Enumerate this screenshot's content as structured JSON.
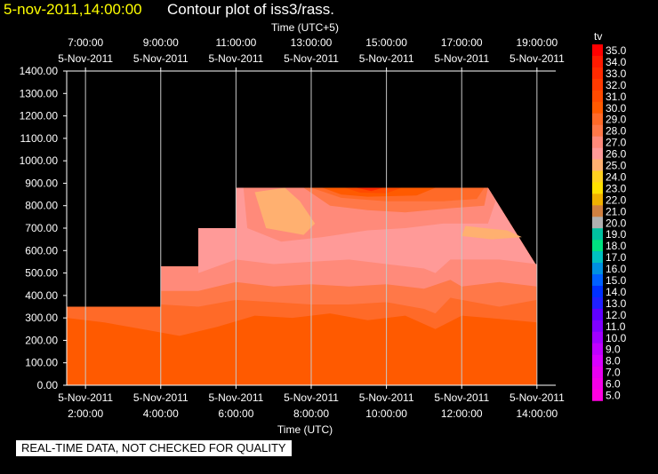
{
  "header": {
    "date_label": "5-nov-2011,14:00:00",
    "plot_title": "Contour plot of iss3/rass."
  },
  "footer": {
    "qc_note": "REAL-TIME DATA, NOT CHECKED FOR QUALITY"
  },
  "chart_data": {
    "type": "contour",
    "title": "Contour plot of iss3/rass.",
    "x_bottom_label": "Time (UTC)",
    "x_top_label": "Time (UTC+5)",
    "x_range_utc_hours": [
      1.5,
      14.5
    ],
    "y_range": [
      0,
      1400
    ],
    "y_ticks": [
      "0.00",
      "100.00",
      "200.00",
      "300.00",
      "400.00",
      "500.00",
      "600.00",
      "700.00",
      "800.00",
      "900.00",
      "1000.00",
      "1100.00",
      "1200.00",
      "1300.00",
      "1400.00"
    ],
    "bottom_ticks": [
      {
        "utc_hour": 2,
        "date": "5-Nov-2011",
        "time": "2:00:00"
      },
      {
        "utc_hour": 4,
        "date": "5-Nov-2011",
        "time": "4:00:00"
      },
      {
        "utc_hour": 6,
        "date": "5-Nov-2011",
        "time": "6:00:00"
      },
      {
        "utc_hour": 8,
        "date": "5-Nov-2011",
        "time": "8:00:00"
      },
      {
        "utc_hour": 10,
        "date": "5-Nov-2011",
        "time": "10:00:00"
      },
      {
        "utc_hour": 12,
        "date": "5-Nov-2011",
        "time": "12:00:00"
      },
      {
        "utc_hour": 14,
        "date": "5-Nov-2011",
        "time": "14:00:00"
      }
    ],
    "top_ticks": [
      {
        "utc_hour": 2,
        "time": "7:00:00",
        "date": "5-Nov-2011"
      },
      {
        "utc_hour": 4,
        "time": "9:00:00",
        "date": "5-Nov-2011"
      },
      {
        "utc_hour": 6,
        "time": "11:00:00",
        "date": "5-Nov-2011"
      },
      {
        "utc_hour": 8,
        "time": "13:00:00",
        "date": "5-Nov-2011"
      },
      {
        "utc_hour": 10,
        "time": "15:00:00",
        "date": "5-Nov-2011"
      },
      {
        "utc_hour": 12,
        "time": "17:00:00",
        "date": "5-Nov-2011"
      },
      {
        "utc_hour": 14,
        "time": "19:00:00",
        "date": "5-Nov-2011"
      }
    ],
    "colorbar": {
      "label": "tv",
      "levels": [
        {
          "value": "35.0",
          "color": "#ff0000"
        },
        {
          "value": "34.0",
          "color": "#ff1a00"
        },
        {
          "value": "33.0",
          "color": "#ff2a00"
        },
        {
          "value": "32.0",
          "color": "#ff3a00"
        },
        {
          "value": "31.0",
          "color": "#ff4a00"
        },
        {
          "value": "30.0",
          "color": "#ff5a00"
        },
        {
          "value": "29.0",
          "color": "#ff6a28"
        },
        {
          "value": "28.0",
          "color": "#ff7848"
        },
        {
          "value": "27.0",
          "color": "#ff8a7a"
        },
        {
          "value": "26.0",
          "color": "#ff9a98"
        },
        {
          "value": "25.0",
          "color": "#ffb070"
        },
        {
          "value": "24.0",
          "color": "#ffd020"
        },
        {
          "value": "23.0",
          "color": "#ffe000"
        },
        {
          "value": "22.0",
          "color": "#f0b000"
        },
        {
          "value": "21.0",
          "color": "#d08040"
        },
        {
          "value": "20.0",
          "color": "#b0b0b0"
        },
        {
          "value": "19.0",
          "color": "#00c0a0"
        },
        {
          "value": "18.0",
          "color": "#00e080"
        },
        {
          "value": "17.0",
          "color": "#00c0c0"
        },
        {
          "value": "16.0",
          "color": "#0090e0"
        },
        {
          "value": "15.0",
          "color": "#0060ff"
        },
        {
          "value": "14.0",
          "color": "#0030ff"
        },
        {
          "value": "13.0",
          "color": "#2020ff"
        },
        {
          "value": "12.0",
          "color": "#6000ff"
        },
        {
          "value": "11.0",
          "color": "#8000ff"
        },
        {
          "value": "10.0",
          "color": "#a000ff"
        },
        {
          "value": "9.0",
          "color": "#c000ff"
        },
        {
          "value": "8.0",
          "color": "#d800ff"
        },
        {
          "value": "7.0",
          "color": "#e800f0"
        },
        {
          "value": "6.0",
          "color": "#f400e8"
        },
        {
          "value": "5.0",
          "color": "#ff00e0"
        }
      ]
    },
    "contour_bands": [
      {
        "level": "30.0",
        "color": "#ff5a00",
        "points": [
          [
            1.5,
            0
          ],
          [
            1.5,
            350
          ],
          [
            4.0,
            350
          ],
          [
            4.0,
            530
          ],
          [
            5.0,
            530
          ],
          [
            5.0,
            700
          ],
          [
            6.0,
            700
          ],
          [
            6.0,
            880
          ],
          [
            12.7,
            880
          ],
          [
            14.0,
            530
          ],
          [
            14.0,
            0
          ]
        ]
      },
      {
        "level": "29.0",
        "color": "#ff6a28",
        "points": [
          [
            1.5,
            300
          ],
          [
            2.5,
            280
          ],
          [
            3.5,
            250
          ],
          [
            4.5,
            220
          ],
          [
            5.5,
            260
          ],
          [
            6.5,
            310
          ],
          [
            7.5,
            300
          ],
          [
            8.5,
            320
          ],
          [
            9.5,
            290
          ],
          [
            10.5,
            310
          ],
          [
            11.3,
            250
          ],
          [
            12.0,
            310
          ],
          [
            12.7,
            300
          ],
          [
            14.0,
            280
          ],
          [
            14.0,
            530
          ],
          [
            12.7,
            880
          ],
          [
            6.0,
            880
          ],
          [
            6.0,
            700
          ],
          [
            5.0,
            700
          ],
          [
            5.0,
            530
          ],
          [
            4.0,
            530
          ],
          [
            4.0,
            350
          ],
          [
            1.5,
            350
          ]
        ]
      },
      {
        "level": "28.0",
        "color": "#ff7848",
        "points": [
          [
            4.0,
            360
          ],
          [
            5.0,
            350
          ],
          [
            6.0,
            380
          ],
          [
            7.0,
            370
          ],
          [
            8.0,
            360
          ],
          [
            9.0,
            360
          ],
          [
            10.0,
            370
          ],
          [
            11.0,
            340
          ],
          [
            11.3,
            320
          ],
          [
            11.7,
            390
          ],
          [
            12.0,
            380
          ],
          [
            13.0,
            350
          ],
          [
            14.0,
            380
          ],
          [
            14.0,
            530
          ],
          [
            12.7,
            880
          ],
          [
            6.0,
            880
          ],
          [
            6.0,
            700
          ],
          [
            5.0,
            700
          ],
          [
            5.0,
            530
          ],
          [
            4.0,
            530
          ]
        ]
      },
      {
        "level": "27.0",
        "color": "#ff8a7a",
        "points": [
          [
            4.0,
            420
          ],
          [
            5.0,
            420
          ],
          [
            6.0,
            460
          ],
          [
            7.0,
            440
          ],
          [
            8.0,
            450
          ],
          [
            9.0,
            440
          ],
          [
            10.0,
            450
          ],
          [
            11.0,
            430
          ],
          [
            11.7,
            470
          ],
          [
            12.0,
            440
          ],
          [
            13.0,
            460
          ],
          [
            14.0,
            440
          ],
          [
            14.0,
            530
          ],
          [
            12.7,
            880
          ],
          [
            6.0,
            880
          ],
          [
            6.0,
            700
          ],
          [
            5.0,
            700
          ],
          [
            5.0,
            530
          ],
          [
            4.0,
            530
          ]
        ]
      },
      {
        "level": "26.0",
        "color": "#ff9a98",
        "points": [
          [
            5.0,
            500
          ],
          [
            6.0,
            560
          ],
          [
            7.0,
            540
          ],
          [
            8.0,
            550
          ],
          [
            9.0,
            560
          ],
          [
            10.0,
            540
          ],
          [
            11.0,
            520
          ],
          [
            11.3,
            500
          ],
          [
            11.7,
            560
          ],
          [
            12.0,
            560
          ],
          [
            13.0,
            560
          ],
          [
            14.0,
            540
          ],
          [
            14.0,
            530
          ],
          [
            12.7,
            880
          ],
          [
            6.0,
            880
          ],
          [
            6.0,
            700
          ],
          [
            5.0,
            700
          ]
        ]
      },
      {
        "level": "27.0",
        "color": "#ff8a7a",
        "points": [
          [
            6.2,
            880
          ],
          [
            6.3,
            700
          ],
          [
            7.2,
            640
          ],
          [
            8.3,
            660
          ],
          [
            9.5,
            690
          ],
          [
            10.5,
            700
          ],
          [
            11.5,
            720
          ],
          [
            12.7,
            720
          ],
          [
            12.9,
            820
          ],
          [
            12.7,
            880
          ]
        ]
      },
      {
        "level": "25.0",
        "color": "#ffb070",
        "points": [
          [
            6.5,
            860
          ],
          [
            7.3,
            880
          ],
          [
            7.7,
            820
          ],
          [
            8.1,
            720
          ],
          [
            7.8,
            670
          ],
          [
            6.8,
            700
          ]
        ]
      },
      {
        "level": "25.0",
        "color": "#ffb070",
        "points": [
          [
            12.1,
            710
          ],
          [
            12.6,
            700
          ],
          [
            13.2,
            690
          ],
          [
            13.6,
            660
          ],
          [
            12.8,
            650
          ],
          [
            12.0,
            665
          ]
        ]
      },
      {
        "level": "28.0",
        "color": "#ff7848",
        "points": [
          [
            7.8,
            880
          ],
          [
            12.7,
            880
          ],
          [
            12.6,
            800
          ],
          [
            11.8,
            790
          ],
          [
            10.5,
            770
          ],
          [
            9.5,
            780
          ],
          [
            8.5,
            800
          ]
        ]
      },
      {
        "level": "29.0",
        "color": "#ff6a28",
        "points": [
          [
            8.0,
            880
          ],
          [
            12.6,
            880
          ],
          [
            12.4,
            830
          ],
          [
            11.5,
            820
          ],
          [
            10.0,
            820
          ],
          [
            8.8,
            835
          ]
        ]
      },
      {
        "level": "30.0",
        "color": "#ff5a00",
        "points": [
          [
            8.3,
            880
          ],
          [
            11.3,
            880
          ],
          [
            10.8,
            845
          ],
          [
            9.5,
            840
          ],
          [
            8.8,
            850
          ]
        ]
      },
      {
        "level": "31.0",
        "color": "#ff4a00",
        "points": [
          [
            8.9,
            880
          ],
          [
            10.4,
            880
          ],
          [
            10.0,
            855
          ],
          [
            9.3,
            858
          ]
        ]
      },
      {
        "level": "33.0",
        "color": "#ff2a00",
        "points": [
          [
            9.2,
            880
          ],
          [
            9.9,
            880
          ],
          [
            9.6,
            865
          ]
        ]
      }
    ]
  }
}
